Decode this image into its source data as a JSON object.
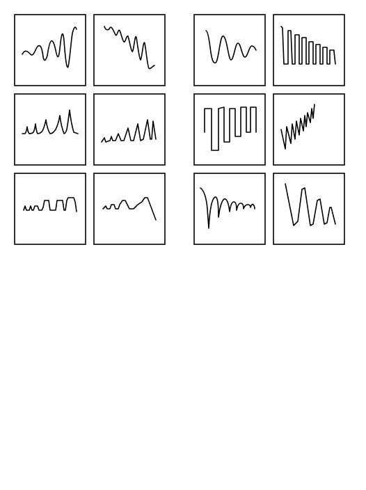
{
  "figure": {
    "description_visible_text": "",
    "left_group": [
      {
        "shape": "growing-sine-wave",
        "stroke": "#000000"
      },
      {
        "shape": "decaying-sine-wave",
        "stroke": "#000000"
      },
      {
        "shape": "growing-cusp-spikes",
        "stroke": "#000000"
      },
      {
        "shape": "growing-triangle-spikes",
        "stroke": "#000000"
      },
      {
        "shape": "growing-rectangular-pulses",
        "stroke": "#000000"
      },
      {
        "shape": "growing-trapezoid-bumps",
        "stroke": "#000000"
      }
    ],
    "right_group": [
      {
        "shape": "decaying-sine-wave",
        "stroke": "#000000"
      },
      {
        "shape": "decaying-square-wave",
        "stroke": "#000000"
      },
      {
        "shape": "rectangular-meander",
        "stroke": "#000000"
      },
      {
        "shape": "rising-sawtooth",
        "stroke": "#000000"
      },
      {
        "shape": "decaying-scallops",
        "stroke": "#000000"
      },
      {
        "shape": "decaying-zigzag",
        "stroke": "#000000"
      }
    ]
  }
}
